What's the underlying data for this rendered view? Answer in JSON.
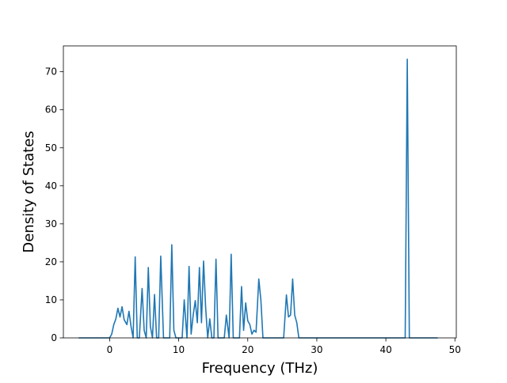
{
  "chart_data": {
    "type": "line",
    "title": "",
    "xlabel": "Frequency (THz)",
    "ylabel": "Density of States",
    "xlim": [
      -6.7,
      50.2
    ],
    "ylim": [
      0,
      76.8
    ],
    "x_ticks": [
      0,
      10,
      20,
      30,
      40,
      50
    ],
    "y_ticks": [
      0,
      10,
      20,
      30,
      40,
      50,
      60,
      70
    ],
    "grid": false,
    "legend": "none",
    "series": [
      {
        "color": "#1f77b4",
        "x": [
          -4.5,
          -3.0,
          -1.5,
          0.0,
          0.3,
          0.6,
          0.9,
          1.2,
          1.5,
          1.8,
          2.1,
          2.5,
          2.8,
          3.1,
          3.4,
          3.7,
          4.0,
          4.3,
          4.7,
          5.0,
          5.3,
          5.6,
          5.9,
          6.2,
          6.5,
          6.8,
          7.1,
          7.4,
          7.8,
          8.1,
          8.4,
          8.7,
          9.0,
          9.3,
          9.6,
          9.9,
          10.2,
          10.5,
          10.8,
          11.2,
          11.5,
          11.8,
          12.1,
          12.4,
          12.7,
          13.0,
          13.3,
          13.6,
          13.9,
          14.2,
          14.5,
          14.8,
          15.1,
          15.4,
          15.7,
          16.0,
          16.3,
          16.6,
          16.9,
          17.3,
          17.6,
          17.9,
          18.2,
          18.5,
          18.8,
          19.1,
          19.4,
          19.7,
          20.0,
          20.3,
          20.6,
          20.9,
          21.2,
          21.6,
          21.9,
          22.2,
          22.5,
          22.8,
          23.1,
          23.4,
          23.7,
          24.0,
          24.3,
          24.6,
          24.9,
          25.2,
          25.6,
          25.9,
          26.2,
          26.5,
          26.8,
          27.1,
          27.4,
          27.7,
          28.0,
          28.3,
          28.6,
          28.9,
          29.2,
          29.5,
          29.8,
          30.1,
          31.0,
          33.0,
          36.0,
          39.0,
          41.0,
          42.0,
          42.8,
          43.1,
          43.4,
          44.0,
          46.0,
          47.5
        ],
        "values": [
          0,
          0,
          0,
          0,
          1.0,
          3.5,
          5.0,
          7.8,
          5.5,
          8.2,
          4.8,
          3.5,
          7.0,
          3.0,
          0,
          21.3,
          0,
          0,
          13.0,
          2.0,
          0,
          18.5,
          3.0,
          0,
          11.4,
          0,
          0,
          21.5,
          0,
          0,
          0,
          0,
          24.5,
          2.0,
          0,
          0,
          0,
          0,
          10.0,
          0,
          18.8,
          1.0,
          6.0,
          9.8,
          4.0,
          18.5,
          4.0,
          20.2,
          8.0,
          0,
          5.0,
          0,
          0,
          20.7,
          0,
          0,
          0,
          0,
          6.0,
          0,
          22.0,
          0,
          0,
          0,
          0,
          13.5,
          2.0,
          9.2,
          4.5,
          3.5,
          1.0,
          2.0,
          1.5,
          15.5,
          10.0,
          0,
          0,
          0,
          0,
          0,
          0,
          0,
          0,
          0,
          0,
          0,
          11.3,
          5.5,
          6.0,
          15.5,
          6.0,
          4.0,
          0,
          0,
          0,
          0,
          0,
          0,
          0,
          0,
          0,
          0,
          0,
          0,
          0,
          0,
          0,
          0,
          0,
          73.3,
          0,
          0,
          0,
          0
        ]
      }
    ]
  }
}
